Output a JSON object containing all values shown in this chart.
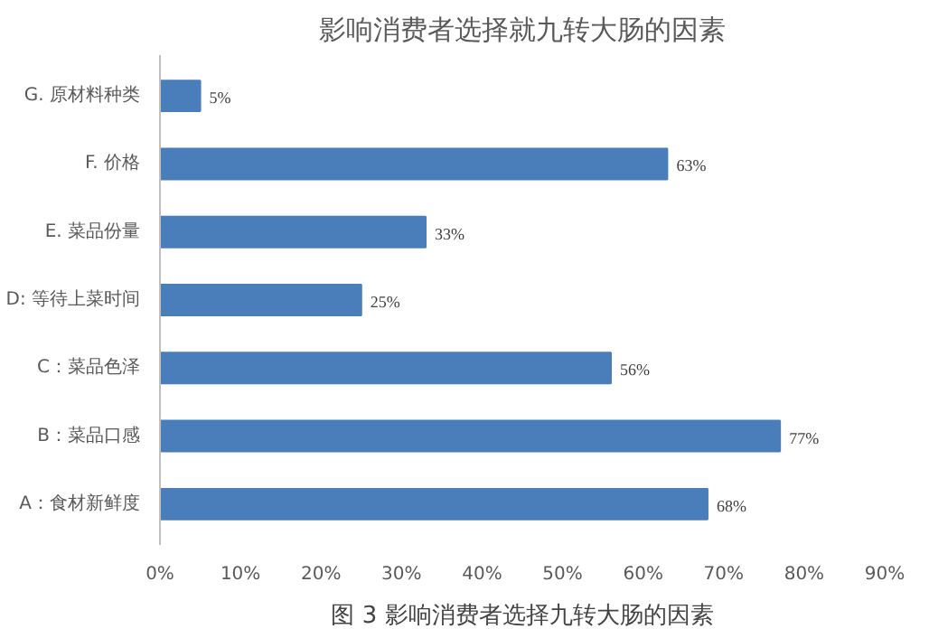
{
  "chart_data": {
    "type": "bar",
    "orientation": "horizontal",
    "title": "影响消费者选择就九转大肠的因素",
    "categories": [
      "G. 原材料种类",
      "F. 价格",
      "E. 菜品份量",
      "D: 等待上菜时间",
      "C：菜品色泽",
      "B：菜品口感",
      "A：食材新鲜度"
    ],
    "values": [
      5,
      63,
      33,
      25,
      56,
      77,
      68
    ],
    "value_labels": [
      "5%",
      "63%",
      "33%",
      "25%",
      "56%",
      "77%",
      "68%"
    ],
    "color": "#4a7ebb",
    "xlim": [
      0,
      90
    ],
    "xticks": [
      {
        "value": 0,
        "label": "0%"
      },
      {
        "value": 10,
        "label": "10%"
      },
      {
        "value": 20,
        "label": "20%"
      },
      {
        "value": 30,
        "label": "30%"
      },
      {
        "value": 40,
        "label": "40%"
      },
      {
        "value": 50,
        "label": "50%"
      },
      {
        "value": 60,
        "label": "60%"
      },
      {
        "value": 70,
        "label": "70%"
      },
      {
        "value": 80,
        "label": "80%"
      },
      {
        "value": 90,
        "label": "90%"
      }
    ],
    "grid": false,
    "annotations": [
      "图 3 影响消费者选择九转大肠的因素"
    ]
  }
}
